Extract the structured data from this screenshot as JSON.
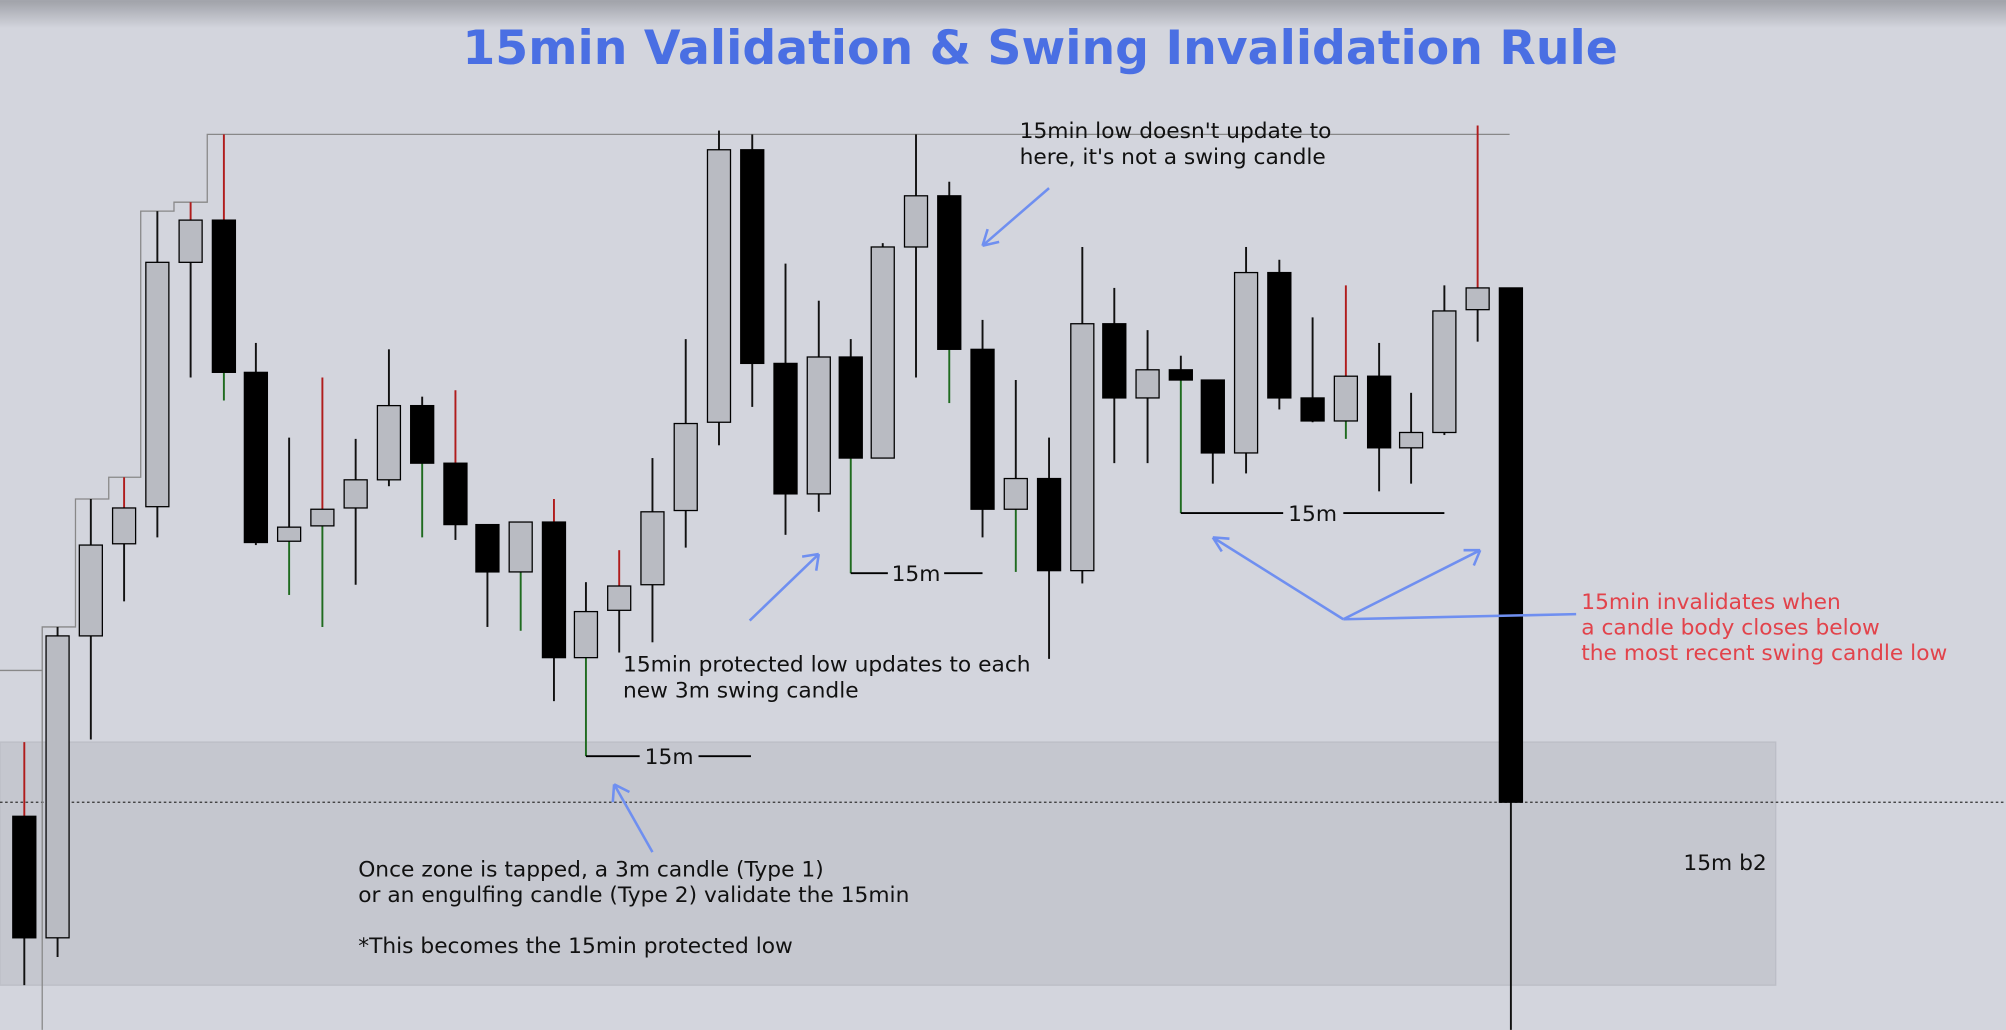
{
  "title": "15min Validation & Swing Invalidation Rule",
  "annotations": {
    "not_swing": [
      "15min low doesn't update to",
      "here, it's not a swing candle"
    ],
    "protected_low": [
      "15min protected low updates to each",
      "new 3m swing candle"
    ],
    "zone_tap": [
      "Once zone is tapped, a 3m candle (Type 1)",
      "or an engulfing candle (Type 2) validate the 15min"
    ],
    "note": "*This becomes the 15min protected low",
    "invalidation": [
      "15min invalidates when",
      "a candle body closes below",
      "the most recent swing candle low"
    ]
  },
  "level_labels": [
    "15m",
    "15m",
    "15m"
  ],
  "zone_label": "15m b2"
}
